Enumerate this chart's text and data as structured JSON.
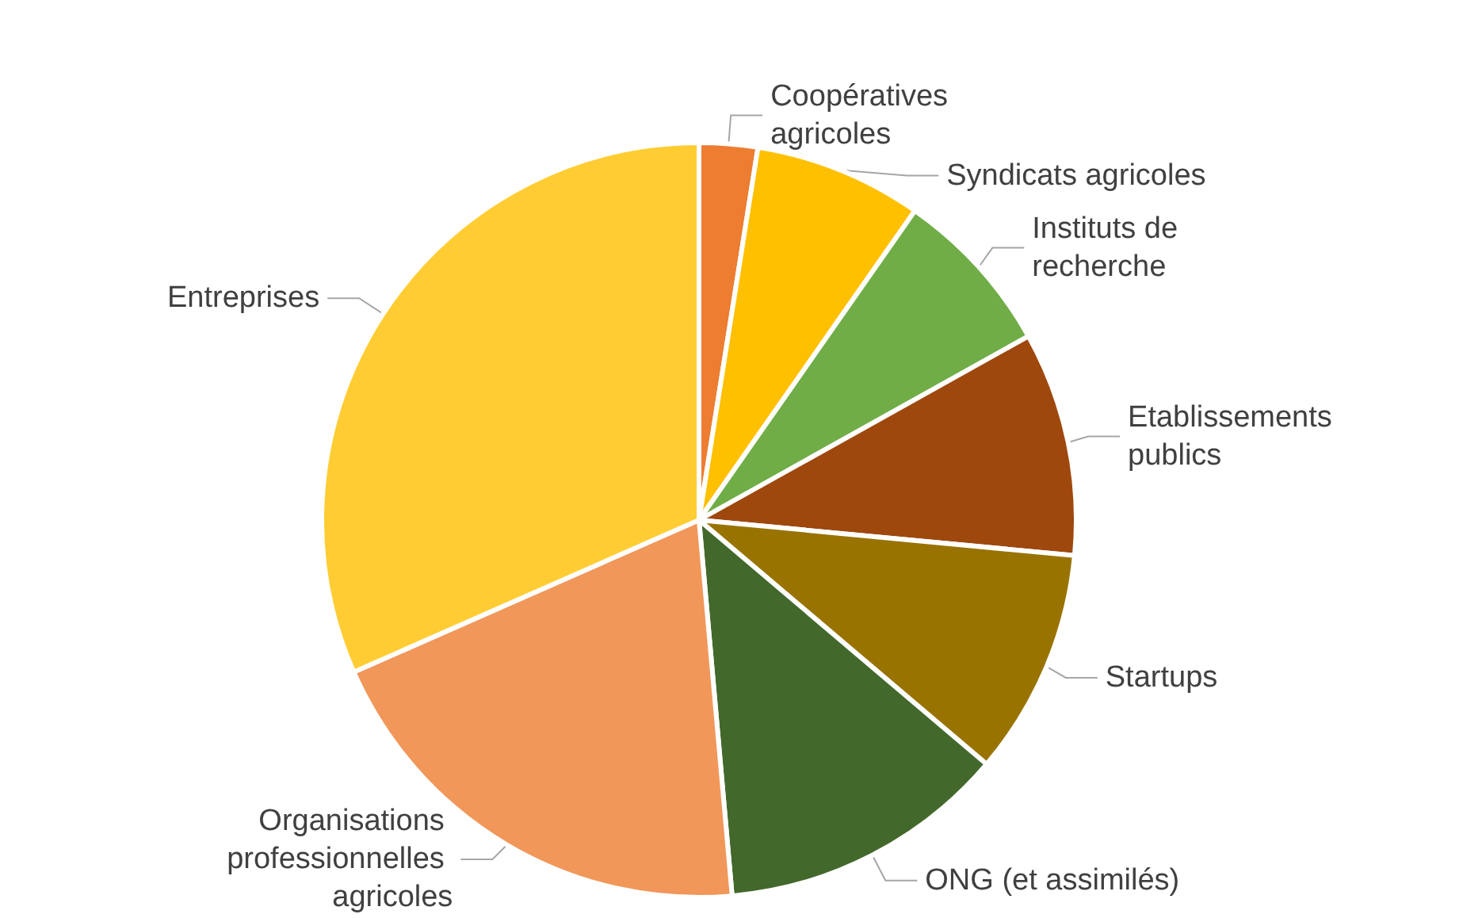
{
  "chart_data": {
    "type": "pie",
    "categories": [
      "Coopératives agricoles",
      "Syndicats agricoles",
      "Instituts de recherche",
      "Etablissements publics",
      "Startups",
      "ONG (et assimilés)",
      "Organisations professionnelles agricoles",
      "Entreprises"
    ],
    "values": [
      2.5,
      7.2,
      7.2,
      9.6,
      9.7,
      12.4,
      19.8,
      31.6
    ],
    "colors": [
      "#ed7d31",
      "#ffc000",
      "#70ad47",
      "#9e480e",
      "#997300",
      "#43682b",
      "#f1975a",
      "#ffcd33"
    ],
    "legend": false
  }
}
